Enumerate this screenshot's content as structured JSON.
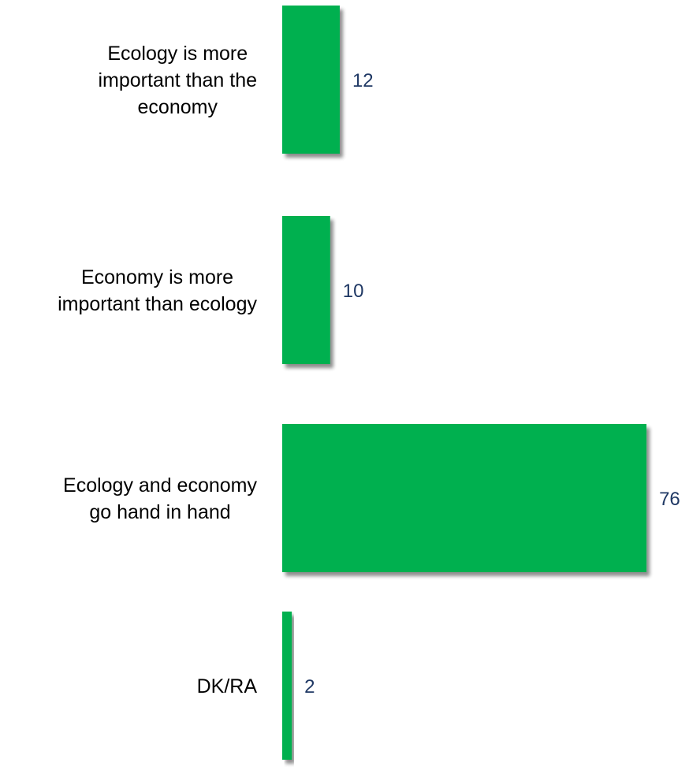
{
  "colors": {
    "bar": "#00b050",
    "bar_shadow": "#9a9a9a",
    "value_label": "#1f3864",
    "category_label": "#000000",
    "background": "#ffffff"
  },
  "chart_data": {
    "type": "bar",
    "orientation": "horizontal",
    "categories": [
      "Ecology is more important than the economy",
      "Economy is more important than ecology",
      "Ecology and economy go hand in hand",
      "DK/RA"
    ],
    "category_lines": [
      [
        "Ecology is more",
        "important than the",
        "economy"
      ],
      [
        "Economy is more",
        "important than ecology"
      ],
      [
        "Ecology and economy",
        "go hand in hand"
      ],
      [
        "DK/RA"
      ]
    ],
    "values": [
      12,
      10,
      76,
      2
    ],
    "data_labels": [
      "12",
      "10",
      "76",
      "2"
    ],
    "xlim": [
      0,
      80
    ],
    "grid": false,
    "legend": "none",
    "title": "",
    "xlabel": "",
    "ylabel": ""
  }
}
